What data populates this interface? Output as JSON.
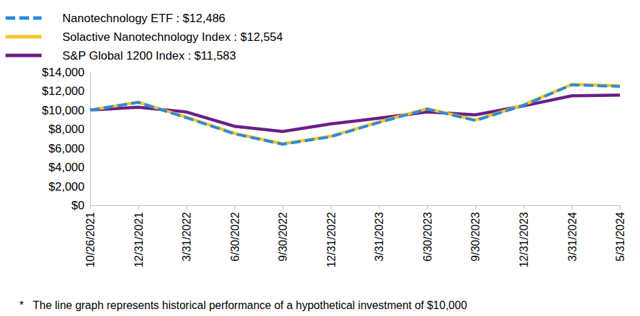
{
  "chart_data": {
    "type": "line",
    "categories": [
      "10/26/2021",
      "12/31/2021",
      "3/31/2022",
      "6/30/2022",
      "9/30/2022",
      "12/31/2022",
      "3/31/2023",
      "6/30/2023",
      "9/30/2023",
      "12/31/2023",
      "3/31/2024",
      "5/31/2024"
    ],
    "series": [
      {
        "name": "Nanotechnology ETF : $12,486",
        "color": "#2a8ae0",
        "line_style": "dashed",
        "values": [
          10000,
          10800,
          9200,
          7500,
          6400,
          7200,
          8700,
          10100,
          8900,
          10500,
          12650,
          12486
        ]
      },
      {
        "name": "Solactive Nanotechnology Index : $12,554",
        "color": "#f7c61e",
        "line_style": "solid",
        "values": [
          10000,
          10850,
          9250,
          7550,
          6450,
          7250,
          8750,
          10150,
          8950,
          10550,
          12700,
          12554
        ]
      },
      {
        "name": "S&P Global 1200 Index : $11,583",
        "color": "#6b1f86",
        "line_style": "solid",
        "values": [
          10000,
          10300,
          9800,
          8300,
          7750,
          8550,
          9150,
          9800,
          9500,
          10450,
          11500,
          11583
        ]
      }
    ],
    "ylim": [
      0,
      14000
    ],
    "yticks": [
      {
        "value": 0,
        "label": "$0"
      },
      {
        "value": 2000,
        "label": "$2,000"
      },
      {
        "value": 4000,
        "label": "$4,000"
      },
      {
        "value": 6000,
        "label": "$6,000"
      },
      {
        "value": 8000,
        "label": "$8,000"
      },
      {
        "value": 10000,
        "label": "$10,000"
      },
      {
        "value": 12000,
        "label": "$12,000"
      },
      {
        "value": 14000,
        "label": "$14,000"
      }
    ],
    "legend": "top-left",
    "grid": false,
    "annotation": "*   The line graph represents historical performance of a hypothetical investment of $10,000"
  }
}
